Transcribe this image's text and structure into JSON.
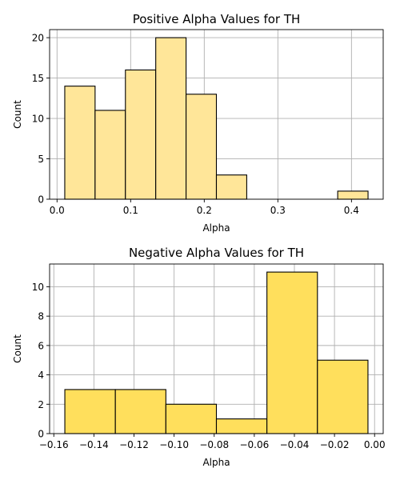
{
  "chart_data": [
    {
      "type": "bar",
      "title": "Positive Alpha Values for TH",
      "xlabel": "Alpha",
      "ylabel": "Count",
      "bin_edges": [
        0.0105,
        0.0517,
        0.0929,
        0.1341,
        0.1753,
        0.2165,
        0.2577,
        0.2989,
        0.3401,
        0.3813,
        0.4225
      ],
      "values": [
        14,
        11,
        16,
        20,
        13,
        3,
        0,
        0,
        0,
        1
      ],
      "xlim": [
        -0.0101,
        0.4431
      ],
      "ylim": [
        0,
        21
      ],
      "xticks": [
        0.0,
        0.1,
        0.2,
        0.3,
        0.4
      ],
      "xtick_labels": [
        "0.0",
        "0.1",
        "0.2",
        "0.3",
        "0.4"
      ],
      "yticks": [
        0,
        5,
        10,
        15,
        20
      ],
      "ytick_labels": [
        "0",
        "5",
        "10",
        "15",
        "20"
      ],
      "bar_color": "#ffe699",
      "edge_color": "#000000",
      "grid": true
    },
    {
      "type": "bar",
      "title": "Negative Alpha Values for TH",
      "xlabel": "Alpha",
      "ylabel": "Count",
      "bin_edges": [
        -0.1545,
        -0.1293,
        -0.1041,
        -0.0789,
        -0.0537,
        -0.0285,
        -0.0033
      ],
      "values": [
        3,
        3,
        2,
        1,
        11,
        5
      ],
      "xlim": [
        -0.1621,
        0.0043
      ],
      "ylim": [
        0,
        11.55
      ],
      "xticks": [
        -0.16,
        -0.14,
        -0.12,
        -0.1,
        -0.08,
        -0.06,
        -0.04,
        -0.02,
        0.0
      ],
      "xtick_labels": [
        "−0.16",
        "−0.14",
        "−0.12",
        "−0.10",
        "−0.08",
        "−0.06",
        "−0.04",
        "−0.02",
        "0.00"
      ],
      "yticks": [
        0,
        2,
        4,
        6,
        8,
        10
      ],
      "ytick_labels": [
        "0",
        "2",
        "4",
        "6",
        "8",
        "10"
      ],
      "bar_color": "#ffdf5c",
      "edge_color": "#000000",
      "grid": true
    }
  ]
}
